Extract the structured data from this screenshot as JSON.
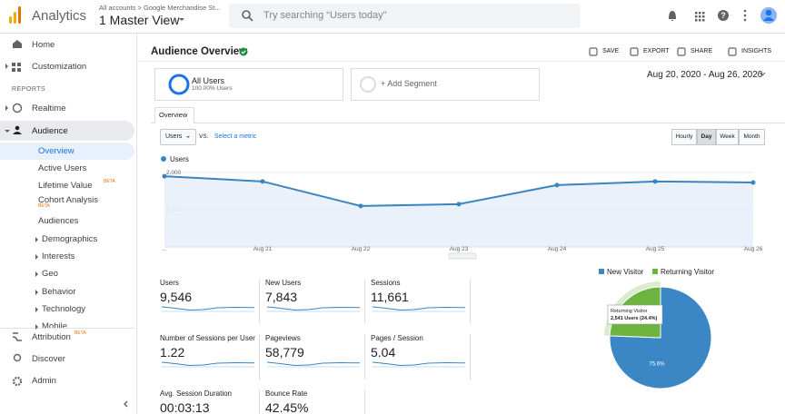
{
  "header": {
    "product": "Analytics",
    "breadcrumb": "All accounts > Google Merchandise St...",
    "view": "1 Master View",
    "search": "Try searching “Users today”"
  },
  "sidebar": {
    "top": [
      "Home",
      "Customization"
    ],
    "section": "REPORTS",
    "items": [
      "Realtime",
      "Audience"
    ],
    "audience_items": [
      {
        "label": "Overview"
      },
      {
        "label": "Active Users"
      },
      {
        "label": "Lifetime Value",
        "badge": "BETA"
      },
      {
        "label": "Cohort Analysis",
        "badge": "BETA"
      },
      {
        "label": "Audiences"
      },
      {
        "label": "Demographics"
      },
      {
        "label": "Interests"
      },
      {
        "label": "Geo"
      },
      {
        "label": "Behavior"
      },
      {
        "label": "Technology"
      },
      {
        "label": "Mobile"
      }
    ],
    "bottom": [
      {
        "label": "Attribution",
        "badge": "BETA"
      },
      {
        "label": "Discover"
      },
      {
        "label": "Admin"
      }
    ]
  },
  "page": {
    "title": "Audience Overview",
    "actions": [
      "SAVE",
      "EXPORT",
      "SHARE",
      "INSIGHTS"
    ],
    "segment": {
      "name": "All Users",
      "share": "100.00% Users"
    },
    "add_segment": "+ Add Segment",
    "date_range": "Aug 20, 2020 - Aug 26, 2020",
    "tab": "Overview",
    "metric": "Users",
    "vs": "VS.",
    "select_metric": "Select a metric",
    "granularity": [
      "Hourly",
      "Day",
      "Week",
      "Month"
    ]
  },
  "chart_data": [
    {
      "type": "line",
      "categories": [
        "...",
        "Aug 21",
        "Aug 22",
        "Aug 23",
        "Aug 24",
        "Aug 25",
        "Aug 26"
      ],
      "series": [
        {
          "name": "Users",
          "color": "#3a84c1",
          "values": [
            1900,
            1760,
            1100,
            1150,
            1660,
            1760,
            1730
          ]
        }
      ],
      "ylim": [
        0,
        2170
      ],
      "yticks": [
        {
          "value": 1000,
          "label": "1,000"
        },
        {
          "value": 2000,
          "label": "2,000"
        }
      ],
      "grid": true
    },
    {
      "type": "pie",
      "categories": [
        "New Visitor",
        "Returning Visitor"
      ],
      "values": [
        75.6,
        24.4
      ],
      "colors": [
        "#3b87c6",
        "#6db33f"
      ],
      "value_labels": [
        "75.6%",
        null
      ],
      "tooltip": {
        "title": "Returning Visitor",
        "text": "2,541 Users (24.4%)"
      }
    }
  ],
  "metrics": [
    {
      "label": "Users",
      "value": "9,546"
    },
    {
      "label": "New Users",
      "value": "7,843"
    },
    {
      "label": "Sessions",
      "value": "11,661"
    },
    {
      "label": "Number of Sessions per User",
      "value": "1.22"
    },
    {
      "label": "Pageviews",
      "value": "58,779"
    },
    {
      "label": "Pages / Session",
      "value": "5.04"
    },
    {
      "label": "Avg. Session Duration",
      "value": "00:03:13"
    },
    {
      "label": "Bounce Rate",
      "value": "42.45%"
    }
  ]
}
